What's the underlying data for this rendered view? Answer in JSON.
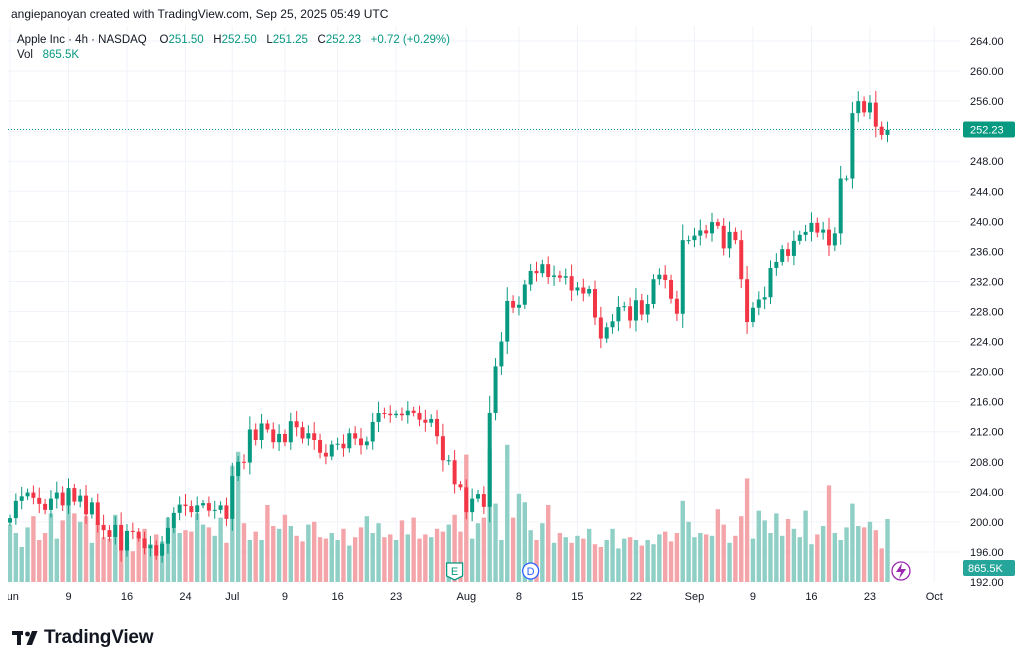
{
  "credit": "angiepanoyan created with TradingView.com, Sep 25, 2025 05:49 UTC",
  "legend": {
    "symbol": "Apple Inc · 4h · NASDAQ",
    "open_label": "O",
    "open": "251.50",
    "high_label": "H",
    "high": "252.50",
    "low_label": "L",
    "low": "251.25",
    "close_label": "C",
    "close": "252.23",
    "change": "+0.72 (+0.29%)",
    "vol_label": "Vol",
    "vol": "865.5K"
  },
  "brand": {
    "name": "TradingView"
  },
  "colors": {
    "up": "#089981",
    "down": "#f23645",
    "up_vol": "#8fcfc6",
    "down_vol": "#f4a5a9",
    "grid": "#f0f3fa"
  },
  "chart_data": {
    "type": "candlestick",
    "title": "Apple Inc · 4h · NASDAQ",
    "ylim": [
      192,
      266
    ],
    "y_ticks": [
      264,
      260,
      256,
      252,
      248,
      244,
      240,
      236,
      232,
      228,
      224,
      220,
      216,
      212,
      208,
      204,
      200,
      196
    ],
    "y_tick_labels": [
      "264.00",
      "260.00",
      "256.00",
      "252.00",
      "248.00",
      "244.00",
      "240.00",
      "236.00",
      "232.00",
      "228.00",
      "224.00",
      "220.00",
      "216.00",
      "212.00",
      "208.00",
      "204.00",
      "200.00",
      "196.00"
    ],
    "y_hidden_label": "192.00",
    "x_ticks": [
      {
        "label": "Jun",
        "bar": 0
      },
      {
        "label": "9",
        "bar": 10
      },
      {
        "label": "16",
        "bar": 20
      },
      {
        "label": "24",
        "bar": 30
      },
      {
        "label": "Jul",
        "bar": 38
      },
      {
        "label": "9",
        "bar": 47
      },
      {
        "label": "16",
        "bar": 56
      },
      {
        "label": "23",
        "bar": 66
      },
      {
        "label": "Aug",
        "bar": 78
      },
      {
        "label": "8",
        "bar": 87
      },
      {
        "label": "15",
        "bar": 97
      },
      {
        "label": "22",
        "bar": 107
      },
      {
        "label": "Sep",
        "bar": 117
      },
      {
        "label": "9",
        "bar": 127
      },
      {
        "label": "16",
        "bar": 137
      },
      {
        "label": "23",
        "bar": 147
      },
      {
        "label": "Oct",
        "bar": 158
      }
    ],
    "last_price": 252.23,
    "last_price_label": "252.23",
    "last_volume_label": "865.5K",
    "events": [
      {
        "label": "E",
        "bar": 76,
        "kind": "earnings"
      },
      {
        "label": "D",
        "bar": 89,
        "kind": "dividend"
      }
    ],
    "volume_max": 10,
    "closes": [
      200.5,
      202.8,
      203.4,
      203.9,
      203.2,
      202.4,
      201.6,
      203.1,
      203.9,
      202.2,
      204.5,
      202.7,
      203.5,
      201.0,
      202.6,
      199.6,
      198.9,
      198.0,
      199.6,
      196.2,
      198.8,
      198.7,
      197.8,
      196.5,
      196.9,
      195.5,
      197.1,
      199.2,
      201.2,
      202.3,
      202.1,
      201.3,
      202.2,
      202.5,
      201.5,
      201.6,
      202.2,
      200.4,
      206.1,
      208.0,
      207.9,
      212.3,
      210.9,
      213.1,
      212.3,
      210.6,
      211.7,
      210.6,
      213.4,
      212.6,
      211.1,
      211.8,
      210.9,
      209.2,
      208.7,
      210.3,
      210.4,
      209.8,
      211.8,
      211.1,
      210.2,
      210.7,
      213.3,
      214.5,
      214.4,
      214.2,
      214.4,
      214.2,
      214.8,
      214.5,
      213.6,
      213.2,
      213.7,
      211.4,
      208.2,
      208.2,
      205.0,
      204.6,
      201.3,
      203.1,
      203.7,
      202.0,
      214.5,
      220.7,
      224.0,
      229.4,
      228.5,
      228.9,
      231.6,
      233.4,
      233.1,
      234.3,
      232.6,
      232.8,
      232.5,
      232.7,
      230.8,
      231.2,
      230.4,
      231.0,
      227.2,
      224.4,
      225.9,
      226.7,
      228.6,
      228.7,
      226.8,
      229.5,
      227.6,
      229.0,
      232.3,
      232.9,
      232.2,
      229.7,
      227.7,
      237.5,
      237.5,
      238.1,
      238.8,
      238.4,
      239.9,
      239.4,
      236.4,
      238.6,
      237.5,
      232.3,
      226.6,
      228.5,
      229.6,
      229.9,
      233.8,
      234.6,
      236.3,
      235.4,
      237.4,
      238.2,
      238.6,
      239.8,
      238.5,
      238.9,
      236.8,
      238.4,
      245.7,
      245.7,
      254.4,
      256.0,
      254.5,
      255.8,
      252.6,
      251.5,
      252.2
    ],
    "volumes": [
      4.1,
      3.5,
      2.5,
      3.9,
      4.7,
      3.0,
      3.5,
      4.9,
      3.1,
      4.4,
      6.4,
      4.9,
      4.3,
      4.7,
      2.8,
      4.2,
      3.2,
      3.1,
      4.8,
      3.6,
      3.1,
      2.2,
      3.3,
      3.8,
      2.7,
      3.4,
      2.9,
      4.6,
      3.9,
      3.5,
      3.7,
      3.6,
      4.9,
      4.1,
      3.9,
      3.3,
      4.6,
      2.8,
      8.3,
      9.3,
      4.2,
      3.0,
      3.6,
      3.0,
      5.5,
      4.0,
      3.8,
      4.8,
      4.0,
      3.3,
      2.9,
      4.1,
      4.3,
      3.2,
      3.1,
      3.5,
      3.0,
      3.8,
      2.6,
      3.2,
      3.9,
      4.7,
      3.5,
      4.2,
      3.2,
      3.4,
      3.0,
      4.4,
      3.4,
      4.6,
      3.1,
      3.4,
      3.2,
      3.8,
      3.6,
      4.1,
      4.8,
      3.6,
      9.1,
      3.1,
      4.2,
      4.6,
      9.5,
      5.6,
      3.0,
      9.8,
      4.6,
      6.3,
      5.7,
      3.7,
      3.0,
      4.2,
      5.5,
      2.8,
      3.5,
      3.2,
      2.8,
      3.3,
      3.1,
      3.8,
      2.7,
      2.5,
      3.0,
      3.8,
      2.4,
      3.1,
      3.2,
      3.0,
      2.6,
      3.0,
      2.7,
      3.4,
      3.6,
      2.9,
      3.5,
      5.8,
      4.3,
      3.2,
      3.5,
      3.4,
      3.3,
      5.2,
      4.1,
      2.8,
      3.3,
      4.7,
      7.4,
      3.1,
      5.1,
      4.4,
      3.5,
      4.9,
      3.3,
      4.5,
      3.8,
      3.2,
      5.1,
      2.7,
      3.4,
      4.0,
      6.9,
      3.5,
      3.0,
      3.9,
      5.6,
      4.0,
      3.9,
      4.3,
      3.7,
      2.4,
      4.5
    ]
  }
}
